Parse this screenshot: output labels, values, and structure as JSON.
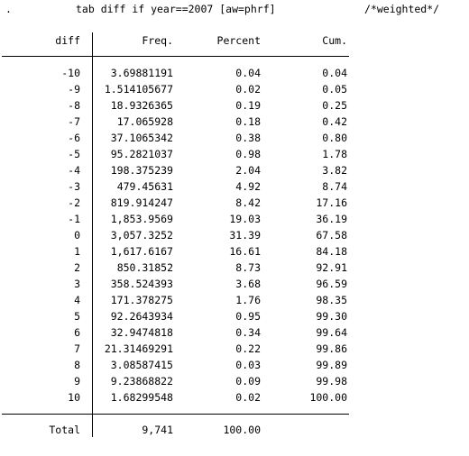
{
  "command": {
    "prompt": ".",
    "text": "tab diff if year==2007 [aw=phrf]",
    "comment": "/*weighted*/"
  },
  "table": {
    "headers": {
      "var": "diff",
      "freq": "Freq.",
      "percent": "Percent",
      "cum": "Cum."
    },
    "rows": [
      {
        "diff": "-10",
        "freq": "3.69881191",
        "percent": "0.04",
        "cum": "0.04"
      },
      {
        "diff": "-9",
        "freq": "1.514105677",
        "percent": "0.02",
        "cum": "0.05"
      },
      {
        "diff": "-8",
        "freq": "18.9326365",
        "percent": "0.19",
        "cum": "0.25"
      },
      {
        "diff": "-7",
        "freq": "17.065928",
        "percent": "0.18",
        "cum": "0.42"
      },
      {
        "diff": "-6",
        "freq": "37.1065342",
        "percent": "0.38",
        "cum": "0.80"
      },
      {
        "diff": "-5",
        "freq": "95.2821037",
        "percent": "0.98",
        "cum": "1.78"
      },
      {
        "diff": "-4",
        "freq": "198.375239",
        "percent": "2.04",
        "cum": "3.82"
      },
      {
        "diff": "-3",
        "freq": "479.45631",
        "percent": "4.92",
        "cum": "8.74"
      },
      {
        "diff": "-2",
        "freq": "819.914247",
        "percent": "8.42",
        "cum": "17.16"
      },
      {
        "diff": "-1",
        "freq": "1,853.9569",
        "percent": "19.03",
        "cum": "36.19"
      },
      {
        "diff": "0",
        "freq": "3,057.3252",
        "percent": "31.39",
        "cum": "67.58"
      },
      {
        "diff": "1",
        "freq": "1,617.6167",
        "percent": "16.61",
        "cum": "84.18"
      },
      {
        "diff": "2",
        "freq": "850.31852",
        "percent": "8.73",
        "cum": "92.91"
      },
      {
        "diff": "3",
        "freq": "358.524393",
        "percent": "3.68",
        "cum": "96.59"
      },
      {
        "diff": "4",
        "freq": "171.378275",
        "percent": "1.76",
        "cum": "98.35"
      },
      {
        "diff": "5",
        "freq": "92.2643934",
        "percent": "0.95",
        "cum": "99.30"
      },
      {
        "diff": "6",
        "freq": "32.9474818",
        "percent": "0.34",
        "cum": "99.64"
      },
      {
        "diff": "7",
        "freq": "21.31469291",
        "percent": "0.22",
        "cum": "99.86"
      },
      {
        "diff": "8",
        "freq": "3.08587415",
        "percent": "0.03",
        "cum": "99.89"
      },
      {
        "diff": "9",
        "freq": "9.23868822",
        "percent": "0.09",
        "cum": "99.98"
      },
      {
        "diff": "10",
        "freq": "1.68299548",
        "percent": "0.02",
        "cum": "100.00"
      }
    ],
    "total": {
      "label": "Total",
      "freq": "9,741",
      "percent": "100.00"
    }
  }
}
